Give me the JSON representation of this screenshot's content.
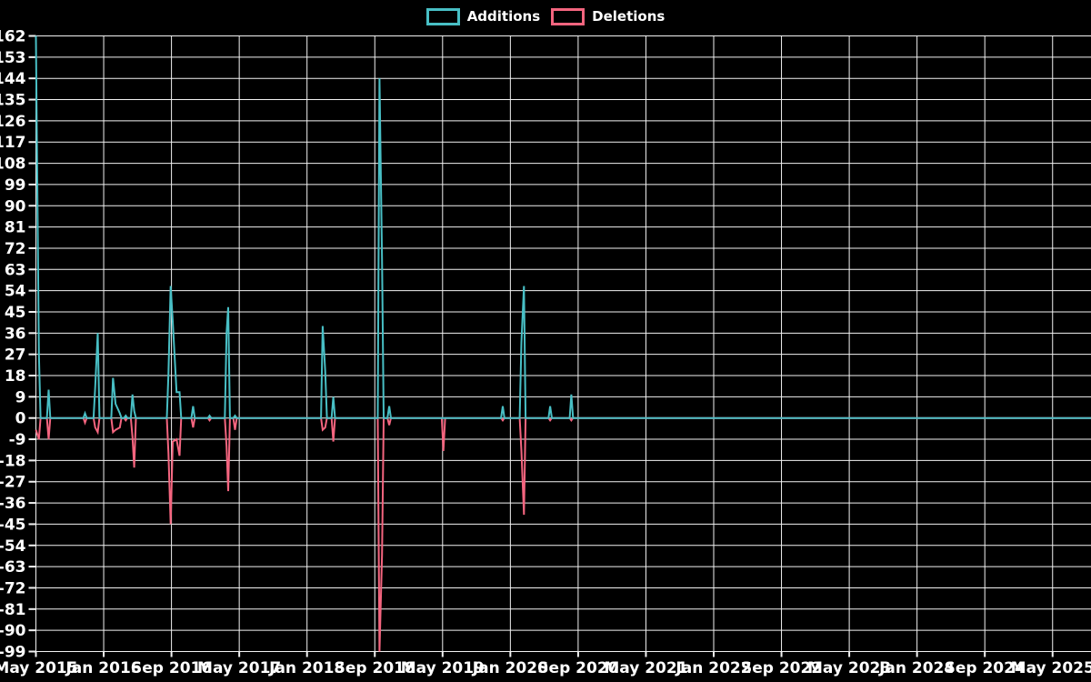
{
  "legend": {
    "items": [
      {
        "label": "Additions",
        "color": "#48bfc5"
      },
      {
        "label": "Deletions",
        "color": "#f4657f"
      }
    ]
  },
  "chart_data": {
    "type": "line",
    "title": "",
    "description": "Weekly code additions and deletions over time; spikes above zero are additions (teal), spikes below zero are deletions (pink), flat baseline at 0 elsewhere.",
    "legend_position": "top-center",
    "grid": true,
    "background": "#000000",
    "colors": {
      "additions": "#48bfc5",
      "deletions": "#f4657f",
      "grid": "#f2f2f2",
      "text": "#ffffff"
    },
    "y_axis": {
      "min": -99,
      "max": 162,
      "step": 9,
      "ticks": [
        162,
        153,
        144,
        135,
        126,
        117,
        108,
        99,
        90,
        81,
        72,
        63,
        54,
        45,
        36,
        27,
        18,
        9,
        0,
        -9,
        -18,
        -27,
        -36,
        -45,
        -54,
        -63,
        -72,
        -81,
        -90,
        -99
      ]
    },
    "x_axis": {
      "start": "2015-05",
      "end": "2025-05",
      "span_months": 120,
      "label_step_months": 8,
      "labels": [
        "May 2015",
        "Jan 2016",
        "Sep 2016",
        "May 2017",
        "Jan 2018",
        "Sep 2018",
        "May 2019",
        "Jan 2020",
        "Sep 2020",
        "May 2021",
        "Jan 2022",
        "Sep 2022",
        "May 2023",
        "Jan 2024",
        "Sep 2024",
        "May 2025"
      ]
    },
    "series_names": [
      "Additions",
      "Deletions"
    ],
    "baseline_value": 0,
    "points": [
      {
        "date": "2015-05",
        "m": 0.0,
        "additions": 162,
        "deletions": -5
      },
      {
        "date": "2015-05",
        "m": 0.35,
        "additions": 27,
        "deletions": -9
      },
      {
        "date": "2015-06",
        "m": 1.5,
        "additions": 12,
        "deletions": -9
      },
      {
        "date": "2015-11",
        "m": 5.8,
        "additions": 2,
        "deletions": -2
      },
      {
        "date": "2015-12",
        "m": 7.0,
        "additions": 13,
        "deletions": -4
      },
      {
        "date": "2015-12",
        "m": 7.3,
        "additions": 36,
        "deletions": -6
      },
      {
        "date": "2016-02",
        "m": 9.1,
        "additions": 17,
        "deletions": -6
      },
      {
        "date": "2016-02",
        "m": 9.4,
        "additions": 6,
        "deletions": -5
      },
      {
        "date": "2016-03",
        "m": 9.9,
        "additions": 2,
        "deletions": -4
      },
      {
        "date": "2016-03",
        "m": 10.6,
        "additions": 1,
        "deletions": -1
      },
      {
        "date": "2016-04",
        "m": 11.4,
        "additions": 10,
        "deletions": -8
      },
      {
        "date": "2016-04",
        "m": 11.6,
        "additions": 3,
        "deletions": -21
      },
      {
        "date": "2016-08",
        "m": 15.65,
        "additions": 19,
        "deletions": -15
      },
      {
        "date": "2016-09",
        "m": 15.9,
        "additions": 56,
        "deletions": -45
      },
      {
        "date": "2016-09",
        "m": 16.15,
        "additions": 41,
        "deletions": -10
      },
      {
        "date": "2016-09",
        "m": 16.6,
        "additions": 11,
        "deletions": -9
      },
      {
        "date": "2016-10",
        "m": 16.95,
        "additions": 11,
        "deletions": -16
      },
      {
        "date": "2016-11",
        "m": 18.55,
        "additions": 5,
        "deletions": -4
      },
      {
        "date": "2017-01",
        "m": 20.5,
        "additions": 1,
        "deletions": -1
      },
      {
        "date": "2017-03",
        "m": 22.5,
        "additions": 36,
        "deletions": -12
      },
      {
        "date": "2017-03",
        "m": 22.7,
        "additions": 47,
        "deletions": -31
      },
      {
        "date": "2017-04",
        "m": 23.5,
        "additions": 1,
        "deletions": -5
      },
      {
        "date": "2018-02",
        "m": 33.85,
        "additions": 39,
        "deletions": -5
      },
      {
        "date": "2018-03",
        "m": 34.15,
        "additions": 20,
        "deletions": -4
      },
      {
        "date": "2018-04",
        "m": 35.1,
        "additions": 9,
        "deletions": -10
      },
      {
        "date": "2018-09",
        "m": 40.55,
        "additions": 144,
        "deletions": -99
      },
      {
        "date": "2018-10",
        "m": 40.85,
        "additions": 67,
        "deletions": -58
      },
      {
        "date": "2018-10",
        "m": 41.7,
        "additions": 5,
        "deletions": -3
      },
      {
        "date": "2019-05",
        "m": 48.1,
        "additions": 0,
        "deletions": -14
      },
      {
        "date": "2019-12",
        "m": 55.1,
        "additions": 5,
        "deletions": -1
      },
      {
        "date": "2020-02",
        "m": 57.3,
        "additions": 32,
        "deletions": -14
      },
      {
        "date": "2020-02",
        "m": 57.6,
        "additions": 56,
        "deletions": -41
      },
      {
        "date": "2020-05",
        "m": 60.7,
        "additions": 5,
        "deletions": -1
      },
      {
        "date": "2020-08",
        "m": 63.2,
        "additions": 10,
        "deletions": -1
      }
    ]
  }
}
